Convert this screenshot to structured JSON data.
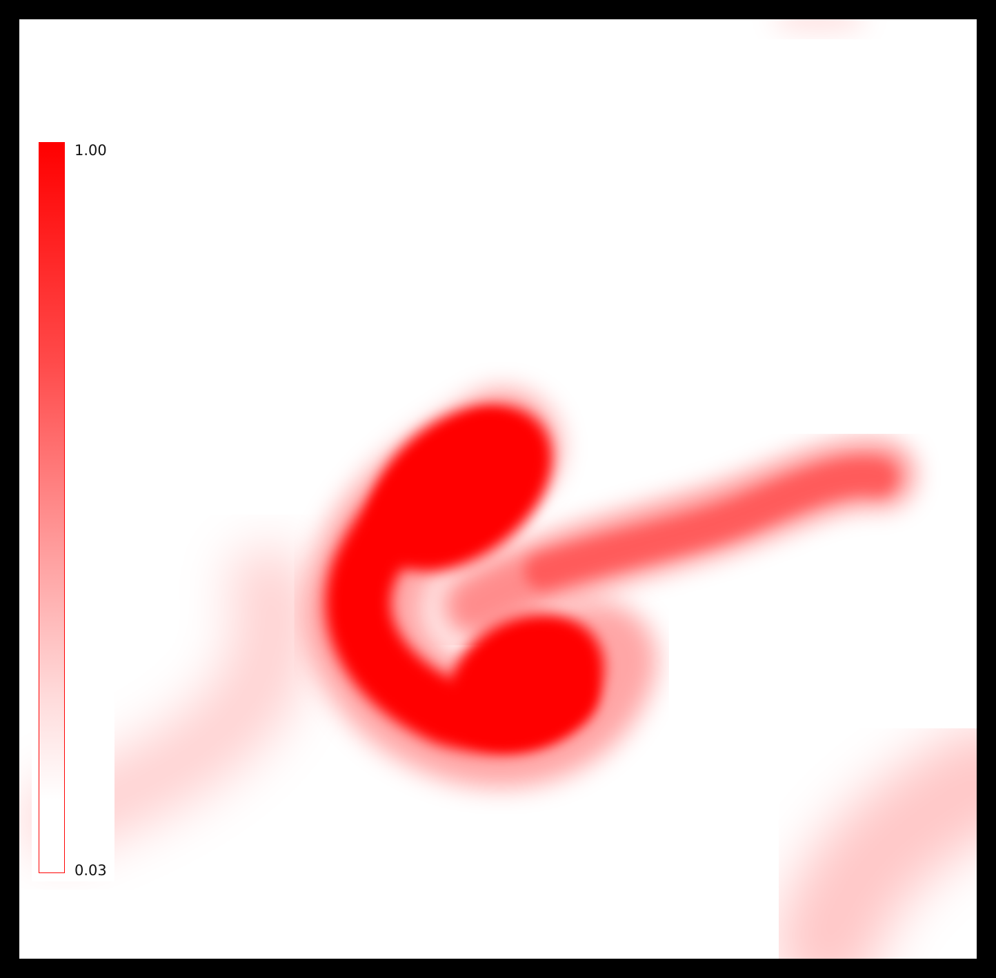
{
  "colorbar": {
    "max_label": "1.00",
    "min_label": "0.03",
    "color_high": "#ff0000",
    "color_low": "#ffffff"
  },
  "colors": {
    "frame": "#000000",
    "background": "#ffffff",
    "field": "#ff0000"
  }
}
